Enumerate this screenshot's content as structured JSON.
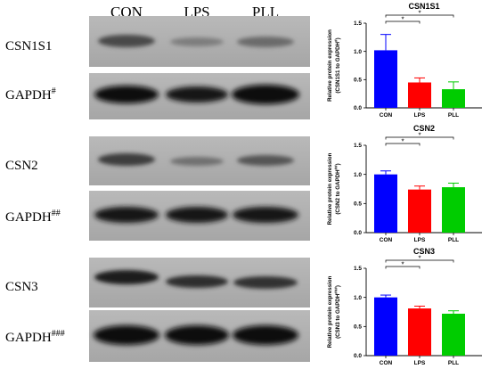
{
  "lanes": [
    "CON",
    "LPS",
    "PLL"
  ],
  "blots": [
    {
      "label": "CSN1S1",
      "sup": ""
    },
    {
      "label": "GAPDH",
      "sup": "#"
    },
    {
      "label": "CSN2",
      "sup": ""
    },
    {
      "label": "GAPDH",
      "sup": "##"
    },
    {
      "label": "CSN3",
      "sup": ""
    },
    {
      "label": "GAPDH",
      "sup": "###"
    }
  ],
  "significance_mark": "*",
  "chart_data": [
    {
      "type": "bar",
      "title": "CSN1S1",
      "ylabel_line1": "Relative protein expression",
      "ylabel_line2": "(CSN1S1 to GAPDH",
      "ylabel_sup": "#",
      "ylabel_close": ")",
      "categories": [
        "CON",
        "LPS",
        "PLL"
      ],
      "values": [
        1.02,
        0.45,
        0.33
      ],
      "errors": [
        0.28,
        0.08,
        0.13
      ],
      "colors": [
        "#0000ff",
        "#ff0000",
        "#00cc00"
      ],
      "ylim": [
        0,
        1.5
      ],
      "yticks": [
        "0.0",
        "0.5",
        "1.0",
        "1.5"
      ]
    },
    {
      "type": "bar",
      "title": "CSN2",
      "ylabel_line1": "Relative protein expression",
      "ylabel_line2": "(CSN2 to GAPDH",
      "ylabel_sup": "##",
      "ylabel_close": ")",
      "categories": [
        "CON",
        "LPS",
        "PLL"
      ],
      "values": [
        1.0,
        0.74,
        0.78
      ],
      "errors": [
        0.06,
        0.06,
        0.07
      ],
      "colors": [
        "#0000ff",
        "#ff0000",
        "#00cc00"
      ],
      "ylim": [
        0,
        1.5
      ],
      "yticks": [
        "0.0",
        "0.5",
        "1.0",
        "1.5"
      ]
    },
    {
      "type": "bar",
      "title": "CSN3",
      "ylabel_line1": "Relative protein expression",
      "ylabel_line2": "(CSN3 to GAPDH",
      "ylabel_sup": "###",
      "ylabel_close": ")",
      "categories": [
        "CON",
        "LPS",
        "PLL"
      ],
      "values": [
        1.0,
        0.81,
        0.72
      ],
      "errors": [
        0.04,
        0.04,
        0.05
      ],
      "colors": [
        "#0000ff",
        "#ff0000",
        "#00cc00"
      ],
      "ylim": [
        0,
        1.5
      ],
      "yticks": [
        "0.0",
        "0.5",
        "1.0",
        "1.5"
      ]
    }
  ]
}
